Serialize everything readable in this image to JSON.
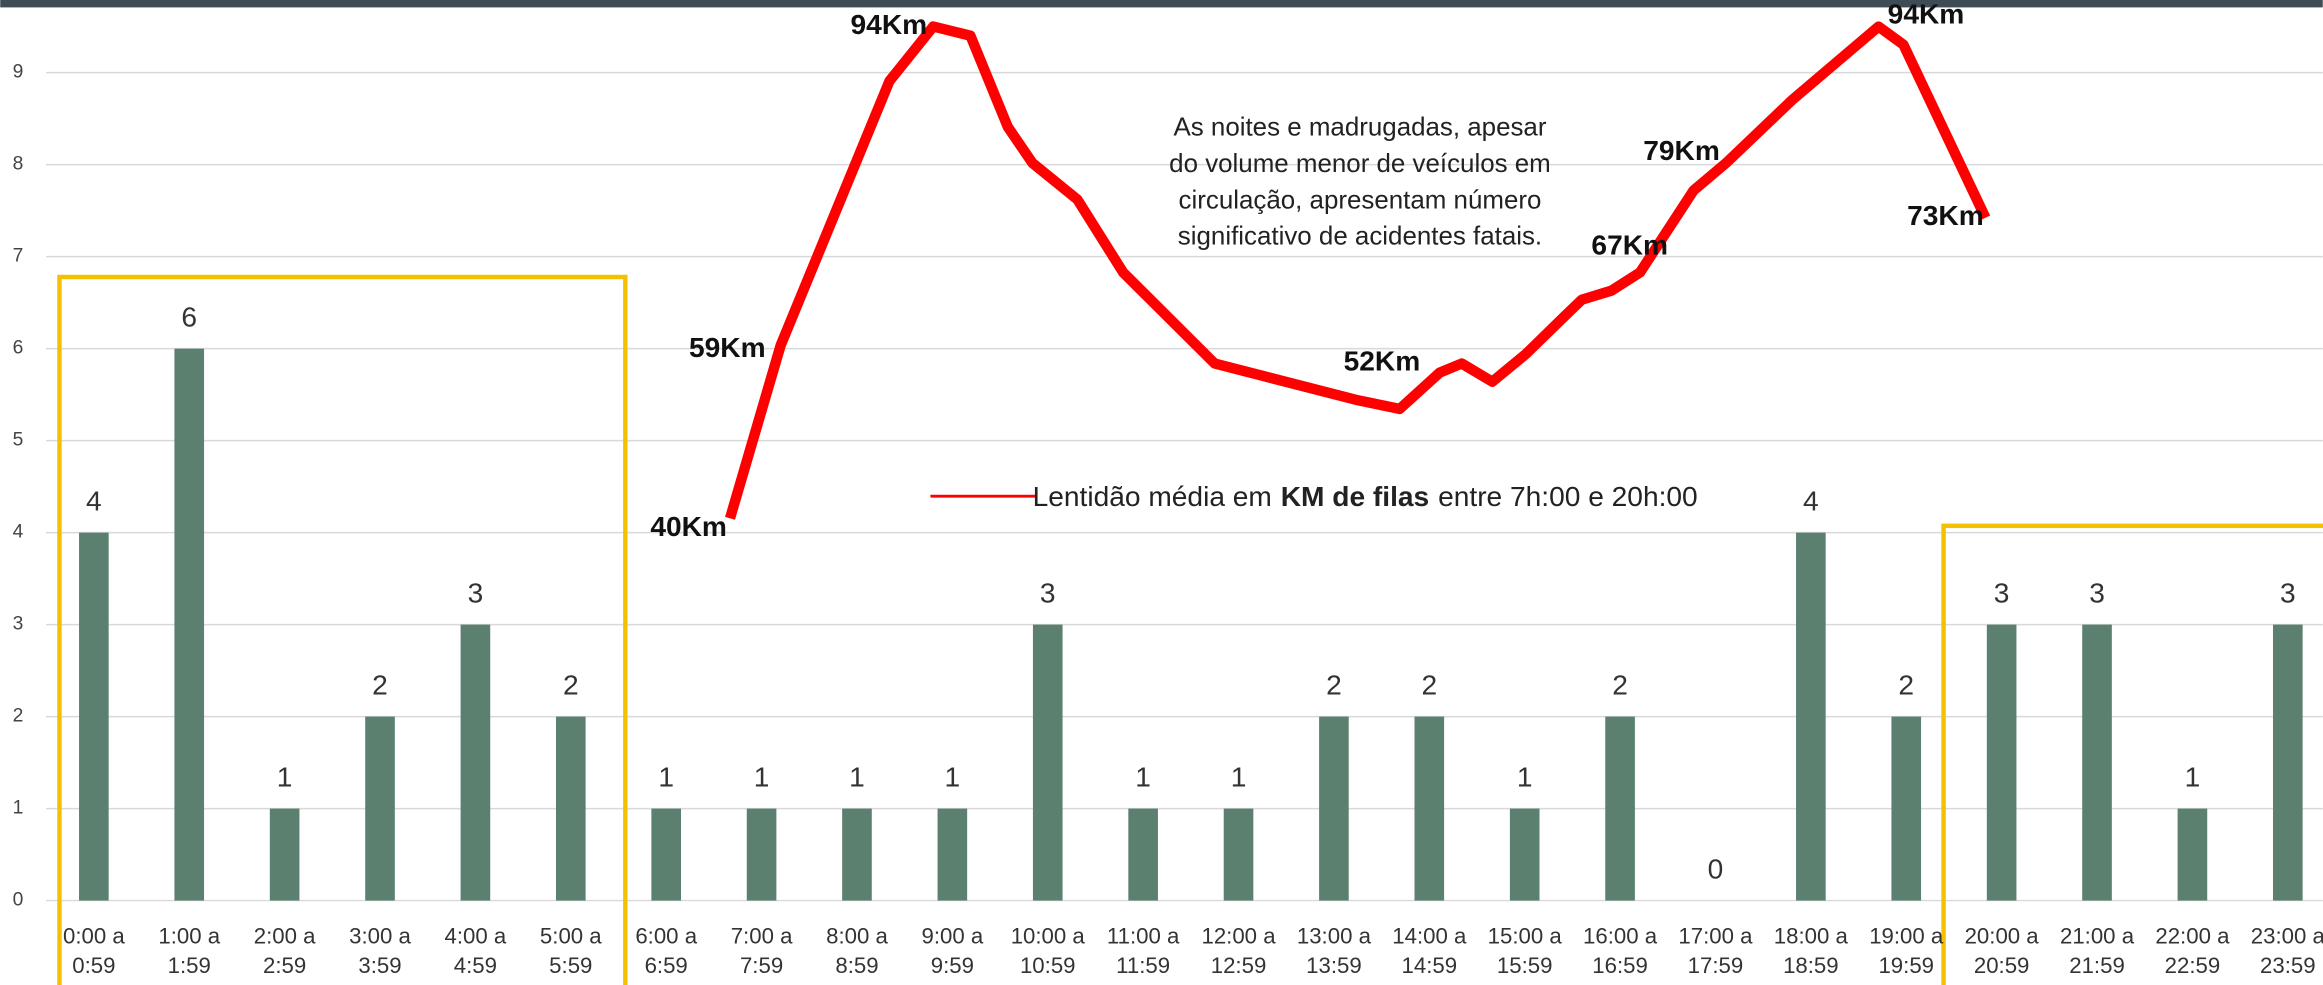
{
  "chart_data": {
    "type": "bar",
    "categories": [
      [
        "0:00 a",
        "0:59"
      ],
      [
        "1:00 a",
        "1:59"
      ],
      [
        "2:00 a",
        "2:59"
      ],
      [
        "3:00 a",
        "3:59"
      ],
      [
        "4:00 a",
        "4:59"
      ],
      [
        "5:00 a",
        "5:59"
      ],
      [
        "6:00 a",
        "6:59"
      ],
      [
        "7:00 a",
        "7:59"
      ],
      [
        "8:00 a",
        "8:59"
      ],
      [
        "9:00 a",
        "9:59"
      ],
      [
        "10:00 a",
        "10:59"
      ],
      [
        "11:00 a",
        "11:59"
      ],
      [
        "12:00 a",
        "12:59"
      ],
      [
        "13:00 a",
        "13:59"
      ],
      [
        "14:00 a",
        "14:59"
      ],
      [
        "15:00 a",
        "15:59"
      ],
      [
        "16:00 a",
        "16:59"
      ],
      [
        "17:00 a",
        "17:59"
      ],
      [
        "18:00 a",
        "18:59"
      ],
      [
        "19:00 a",
        "19:59"
      ],
      [
        "20:00 a",
        "20:59"
      ],
      [
        "21:00 a",
        "21:59"
      ],
      [
        "22:00 a",
        "22:59"
      ],
      [
        "23:00 a",
        "23:59"
      ]
    ],
    "series": [
      {
        "color": "#5b8070",
        "values": [
          4,
          6,
          1,
          2,
          3,
          2,
          1,
          1,
          1,
          1,
          3,
          1,
          1,
          2,
          2,
          1,
          2,
          0,
          4,
          2,
          3,
          3,
          1,
          3
        ]
      },
      {
        "type": "line",
        "axis": "y2",
        "color": "#ff0000",
        "name": [
          "Lentidão média em",
          "KM de filas",
          "entre 7h:00 e 20h:00"
        ],
        "x": [
          7.17,
          7.7,
          8.84,
          9.3,
          9.69,
          10.08,
          10.34,
          10.81,
          11.29,
          12.25,
          13.73,
          14.19,
          14.61,
          14.84,
          15.16,
          15.51,
          15.9,
          16.1,
          16.41,
          16.71,
          17.27,
          17.61,
          18.31,
          19.21,
          19.47,
          20.33
        ],
        "values": [
          40,
          59,
          88,
          94,
          93,
          83,
          79,
          75,
          67,
          57,
          53,
          52,
          56,
          57,
          55,
          58,
          62,
          64,
          65,
          67,
          76,
          79,
          86,
          94,
          92,
          73
        ],
        "value_labels": [
          "40Km",
          "59Km",
          null,
          "94Km",
          null,
          null,
          null,
          null,
          null,
          null,
          null,
          "52Km",
          null,
          null,
          null,
          null,
          null,
          null,
          null,
          "67Km",
          null,
          "79Km",
          null,
          "94Km",
          null,
          "73Km"
        ]
      }
    ],
    "ylim": [
      0,
      9.6
    ],
    "yticks": [
      0,
      1,
      2,
      3,
      4,
      5,
      6,
      7,
      8,
      9
    ],
    "y2lim": [
      -2,
      95
    ],
    "grid": true,
    "annotation": [
      "As noites e madrugadas, apesar",
      "do volume menor de veículos em",
      "circulação, apresentam número",
      "significativo de acidentes fatais."
    ]
  }
}
